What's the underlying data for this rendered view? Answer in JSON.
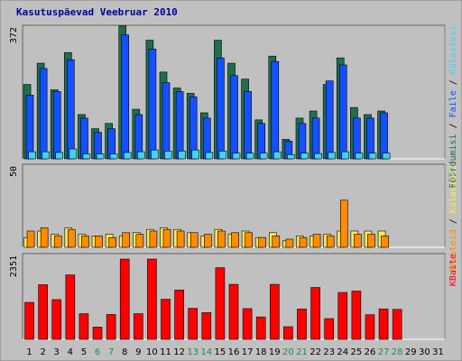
{
  "title": "Kasutuspäevad Veebruar 2010",
  "colors": {
    "page_bg": "#C0C0C0",
    "panel_bg": "#C0C0C0",
    "title": "#0000A0",
    "pohjus": "#1E6F4E",
    "fail": "#1450FF",
    "kulastus": "#3FD4F2",
    "arv": "#FF8C00",
    "host": "#FFE94A",
    "kbaite": "#FF0000",
    "weekend": "#1E8C50",
    "normal": "#000000"
  },
  "chart_data": [
    {
      "type": "bar",
      "panel": "top",
      "ymax_label": "372",
      "ylim": [
        0,
        372
      ],
      "categories": [
        "1",
        "2",
        "3",
        "4",
        "5",
        "6",
        "7",
        "8",
        "9",
        "10",
        "11",
        "12",
        "13",
        "14",
        "15",
        "16",
        "17",
        "18",
        "19",
        "20",
        "21",
        "22",
        "23",
        "24",
        "25",
        "26",
        "27",
        "28",
        "29",
        "30",
        "31"
      ],
      "legend": [
        {
          "label": "Pöördumisi",
          "color": "#1E6F4E"
        },
        {
          "label": "Faile",
          "color": "#1450FF"
        },
        {
          "label": "Külastusi",
          "color": "#3FD4F2"
        }
      ],
      "series": [
        {
          "name": "Pöördumisi",
          "values": [
            210,
            270,
            195,
            300,
            125,
            85,
            100,
            375,
            140,
            335,
            245,
            200,
            185,
            130,
            335,
            270,
            225,
            110,
            290,
            55,
            115,
            135,
            210,
            285,
            145,
            125,
            135,
            null,
            null,
            null,
            null
          ]
        },
        {
          "name": "Faile",
          "values": [
            180,
            255,
            190,
            280,
            115,
            75,
            85,
            350,
            125,
            310,
            215,
            190,
            175,
            115,
            285,
            235,
            190,
            100,
            275,
            50,
            100,
            115,
            220,
            265,
            115,
            115,
            130,
            null,
            null,
            null,
            null
          ]
        },
        {
          "name": "Külastusi",
          "values": [
            20,
            20,
            18,
            28,
            14,
            14,
            14,
            18,
            20,
            25,
            22,
            22,
            25,
            18,
            22,
            16,
            16,
            16,
            20,
            12,
            16,
            15,
            18,
            20,
            16,
            16,
            16,
            null,
            null,
            null,
            null
          ]
        }
      ]
    },
    {
      "type": "bar",
      "panel": "middle",
      "ymax_label": "50",
      "ylim": [
        0,
        50
      ],
      "legend": [
        {
          "label": "Arvuteid",
          "color": "#FF8C00"
        },
        {
          "label": "Külastusi",
          "color": "#FFE94A"
        }
      ],
      "series": [
        {
          "name": "Arvuteid",
          "values": [
            10,
            12,
            7,
            11,
            7,
            7,
            6,
            9,
            8,
            10,
            11,
            10,
            9,
            8,
            10,
            9,
            9,
            6,
            7,
            5,
            6,
            8,
            7,
            29,
            8,
            8,
            7,
            null,
            null,
            null,
            null
          ]
        },
        {
          "name": "Külastusi",
          "values": [
            6,
            10,
            8,
            12,
            8,
            7,
            8,
            7,
            9,
            11,
            12,
            11,
            9,
            7,
            11,
            8,
            10,
            6,
            9,
            4,
            7,
            7,
            8,
            10,
            10,
            10,
            10,
            null,
            null,
            null,
            null
          ]
        }
      ]
    },
    {
      "type": "bar",
      "panel": "bottom",
      "ymax_label": "2351",
      "ylim": [
        0,
        2351
      ],
      "legend": [
        {
          "label": "KBaite",
          "color": "#FF0000"
        }
      ],
      "series": [
        {
          "name": "KBaite",
          "values": [
            1035,
            1530,
            1113,
            1804,
            718,
            343,
            696,
            2249,
            718,
            2249,
            1123,
            1381,
            869,
            747,
            2007,
            1540,
            860,
            627,
            1540,
            354,
            852,
            1452,
            581,
            1313,
            1351,
            689,
            853,
            839,
            null,
            null,
            null
          ]
        }
      ]
    }
  ],
  "weekend_days": [
    "6",
    "7",
    "13",
    "14",
    "20",
    "21",
    "27",
    "28"
  ]
}
